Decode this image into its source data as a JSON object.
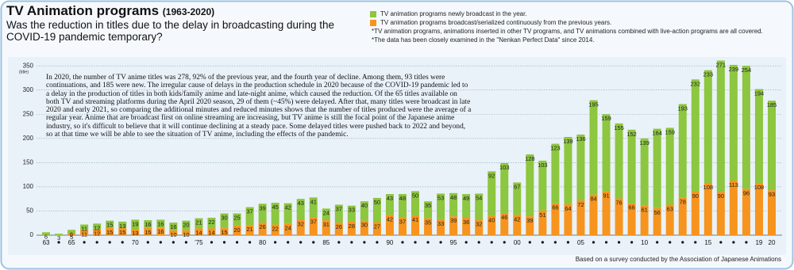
{
  "header": {
    "title": "TV Animation programs",
    "title_range": "(1963-2020)",
    "subtitle": "Was the reduction in titles due to the delay in broadcasting during the COVID-19 pandemic temporary?"
  },
  "notes": [
    "*TV animation programs, animations inserted in other TV programs, and TV animations combined with live-action programs are all covered.",
    "*The data has been closely examined in the \"Nenkan Perfect Data\" since 2014."
  ],
  "chart_data": {
    "type": "bar",
    "stacked": true,
    "categories": [
      "63",
      null,
      "65",
      null,
      null,
      null,
      null,
      "70",
      null,
      null,
      null,
      null,
      "'75",
      null,
      null,
      null,
      null,
      "80",
      null,
      null,
      null,
      null,
      "85",
      null,
      null,
      null,
      null,
      "90",
      null,
      null,
      null,
      null,
      "95",
      null,
      null,
      null,
      null,
      "00",
      null,
      null,
      null,
      null,
      "05",
      null,
      null,
      null,
      null,
      "10",
      null,
      null,
      null,
      null,
      "15",
      null,
      null,
      null,
      "19",
      "20"
    ],
    "series": [
      {
        "name": "TV animation programs newly broadcast in the year.",
        "color": "#8dc63f",
        "values": [
          6,
          3,
          6,
          11,
          12,
          15,
          13,
          19,
          16,
          16,
          16,
          20,
          21,
          22,
          30,
          25,
          37,
          39,
          45,
          42,
          43,
          41,
          24,
          37,
          33,
          40,
          50,
          43,
          48,
          50,
          35,
          53,
          48,
          49,
          54,
          92,
          103,
          67,
          128,
          103,
          123,
          139,
          136,
          195,
          159,
          155,
          152,
          139,
          164,
          159,
          193,
          232,
          233,
          271,
          239,
          254,
          194,
          185
        ]
      },
      {
        "name": "TV animation programs broadcast/serialized continuously from the previous years.",
        "color": "#f7941d",
        "values": [
          null,
          null,
          5,
          11,
          12,
          15,
          15,
          13,
          15,
          16,
          10,
          10,
          14,
          14,
          15,
          20,
          21,
          26,
          22,
          24,
          32,
          37,
          31,
          26,
          28,
          30,
          27,
          42,
          37,
          41,
          35,
          33,
          39,
          36,
          32,
          40,
          46,
          42,
          39,
          51,
          66,
          64,
          72,
          84,
          91,
          76,
          66,
          61,
          56,
          63,
          78,
          90,
          108,
          90,
          113,
          96,
          108,
          93
        ]
      }
    ],
    "ylim": [
      0,
      365
    ],
    "yticks": [
      0,
      50,
      100,
      150,
      200,
      250,
      300,
      350
    ],
    "y_unit_label": "(title)",
    "grid": true,
    "annotation": "In 2020, the number of TV anime titles was 278, 92% of the previous year, and the fourth year of decline. Among them, 93 titles were continuations, and 185 were new. The irregular cause of delays in the production schedule in 2020 because of the COVID-19 pandemic led to a delay in the production of titles in both kids/family anime and late-night anime, which caused the reduction. Of the 65 titles available on both TV and streaming platforms during the April 2020 season, 29 of them (~45%) were delayed. After that, many titles were broadcast in late 2020 and early 2021, so comparing the additional minutes and reduced minutes shows that the number of titles produced were the average of a regular year. Anime that are broadcast first on online streaming are increasing, but TV anime is still the focal point of the Japanese anime industry, so it's difficult to believe that it will continue declining at a steady pace. Some delayed titles were pushed back to 2022 and beyond, so at that time we will be able to see the situation of TV anime, including the effects of the pandemic.",
    "source": "Based on a survey conducted by the Association of Japanese Animations"
  }
}
